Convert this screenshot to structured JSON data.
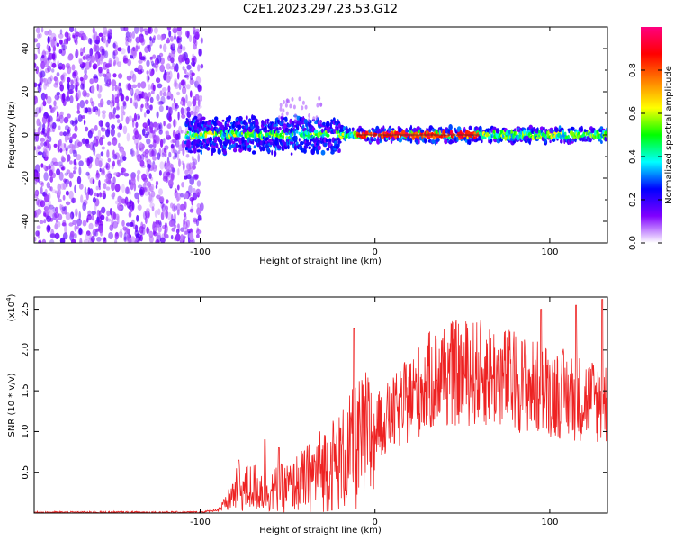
{
  "title": "C2E1.2023.297.23.53.G12",
  "chart_data": [
    {
      "type": "heatmap",
      "name": "spectrogram",
      "xlabel": "Height of straight line (km)",
      "ylabel": "Frequency (Hz)",
      "xlim": [
        -195,
        133
      ],
      "ylim": [
        -50,
        50
      ],
      "xticks": [
        -100,
        0,
        100
      ],
      "xtick_labels": [
        "-100",
        "0",
        "100"
      ],
      "yticks": [
        -40,
        -20,
        0,
        20,
        40
      ],
      "ytick_labels": [
        "-40",
        "-20",
        "0",
        "20",
        "40"
      ],
      "grid": false,
      "description_points": {
        "noise_region_x": [
          -195,
          -105
        ],
        "signal_line_y": 0,
        "signal_start_x": -108,
        "peak_amplitude_region_x": [
          -10,
          60
        ]
      },
      "colorbar": {
        "label": "Normalized spectral amplitude",
        "range": [
          0,
          1
        ],
        "ticks": [
          0.0,
          0.2,
          0.4,
          0.6,
          0.8
        ],
        "tick_labels": [
          "0.0",
          "0.2",
          "0.4",
          "0.6",
          "0.8"
        ],
        "colors": [
          "#ffffff",
          "#8000ff",
          "#0000ff",
          "#00ffff",
          "#00ff00",
          "#ffff00",
          "#ff8000",
          "#ff0000",
          "#ff0080"
        ]
      }
    },
    {
      "type": "line",
      "name": "snr",
      "xlabel": "Height of straight line (km)",
      "ylabel": "SNR (10 * v/v)",
      "yscale_label": "(x10",
      "yscale_exp": "4",
      "yscale_close": ")",
      "xlim": [
        -195,
        133
      ],
      "ylim": [
        0,
        2.65
      ],
      "xticks": [
        -100,
        0,
        100
      ],
      "xtick_labels": [
        "-100",
        "0",
        "100"
      ],
      "yticks": [
        0.5,
        1.0,
        1.5,
        2.0,
        2.5
      ],
      "ytick_labels": [
        "0.5",
        "1.0",
        "1.5",
        "2.0",
        "2.5"
      ],
      "color": "#ee2222",
      "envelope": {
        "x": [
          -195,
          -100,
          -90,
          -85,
          -80,
          -70,
          -60,
          -50,
          -40,
          -30,
          -20,
          -10,
          0,
          10,
          20,
          30,
          40,
          50,
          60,
          70,
          80,
          90,
          100,
          110,
          120,
          133
        ],
        "y": [
          0.01,
          0.01,
          0.04,
          0.12,
          0.3,
          0.35,
          0.3,
          0.35,
          0.45,
          0.6,
          0.7,
          0.9,
          1.05,
          1.2,
          1.4,
          1.6,
          1.7,
          1.72,
          1.72,
          1.68,
          1.62,
          1.55,
          1.5,
          1.45,
          1.4,
          1.35
        ]
      },
      "spikes": [
        {
          "x": -78,
          "y": 0.65
        },
        {
          "x": -63,
          "y": 0.9
        },
        {
          "x": -55,
          "y": 0.8
        },
        {
          "x": -12,
          "y": 2.27
        },
        {
          "x": 95,
          "y": 2.5
        },
        {
          "x": 115,
          "y": 2.55
        },
        {
          "x": 130,
          "y": 2.62
        }
      ]
    }
  ]
}
